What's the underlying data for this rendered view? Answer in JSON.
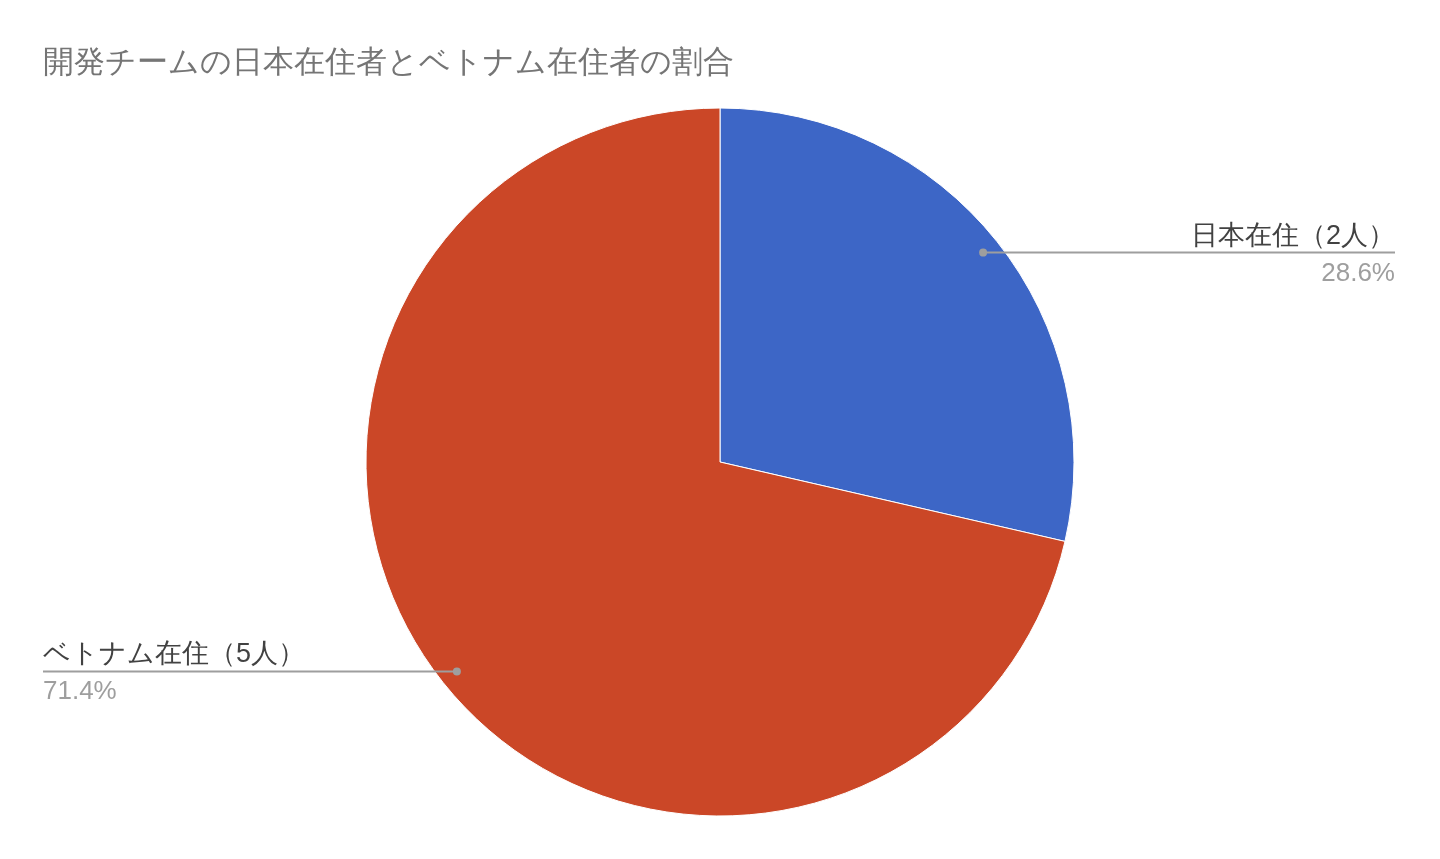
{
  "chart_data": {
    "type": "pie",
    "title": "開発チームの日本在住者とベトナム在住者の割合",
    "categories": [
      "日本在住（2人）",
      "ベトナム在住（5人）"
    ],
    "values": [
      28.6,
      71.4
    ],
    "colors": [
      "#3d66c6",
      "#cb4727"
    ],
    "value_labels": [
      "28.6%",
      "71.4%"
    ]
  }
}
